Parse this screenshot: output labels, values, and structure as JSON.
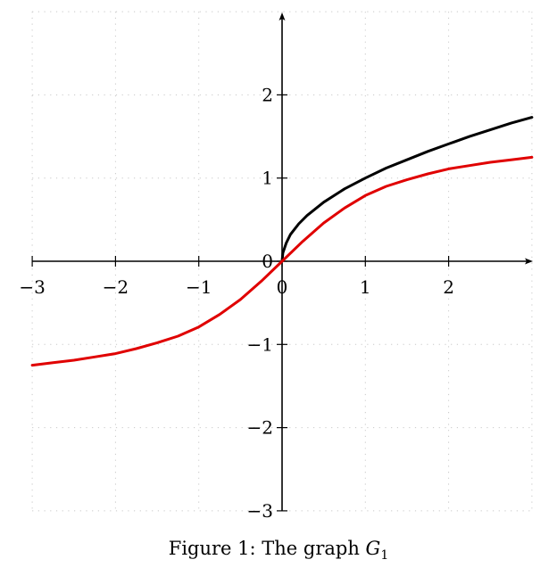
{
  "caption": {
    "prefix": "Figure 1:  The graph ",
    "symbol": "G",
    "subscript": "1"
  },
  "chart_data": {
    "type": "line",
    "title": "",
    "xlabel": "",
    "ylabel": "",
    "xlim": [
      -3,
      3
    ],
    "ylim": [
      -3,
      3
    ],
    "grid": true,
    "x_ticks": [
      -3,
      -2,
      -1,
      0,
      1,
      2
    ],
    "x_tick_labels": [
      "−3",
      "−2",
      "−1",
      "0",
      "1",
      "2"
    ],
    "y_ticks": [
      -3,
      -2,
      -1,
      0,
      1,
      2
    ],
    "y_tick_labels": [
      "−3",
      "−2",
      "−1",
      "0",
      "1",
      "2"
    ],
    "series": [
      {
        "color": "#000000",
        "x": [
          0,
          0.01,
          0.05,
          0.1,
          0.2,
          0.3,
          0.5,
          0.75,
          1,
          1.25,
          1.5,
          1.75,
          2,
          2.25,
          2.5,
          2.75,
          3
        ],
        "y": [
          0,
          0.1,
          0.22,
          0.32,
          0.45,
          0.55,
          0.71,
          0.87,
          1.0,
          1.12,
          1.22,
          1.32,
          1.41,
          1.5,
          1.58,
          1.66,
          1.73
        ]
      },
      {
        "color": "#e00000",
        "x": [
          -3,
          -2.75,
          -2.5,
          -2.25,
          -2,
          -1.75,
          -1.5,
          -1.25,
          -1,
          -0.75,
          -0.5,
          -0.25,
          0,
          0.25,
          0.5,
          0.75,
          1,
          1.25,
          1.5,
          1.75,
          2,
          2.25,
          2.5,
          2.75,
          3
        ],
        "y": [
          -1.25,
          -1.22,
          -1.19,
          -1.15,
          -1.11,
          -1.05,
          -0.98,
          -0.9,
          -0.79,
          -0.64,
          -0.46,
          -0.24,
          0,
          0.24,
          0.46,
          0.64,
          0.79,
          0.9,
          0.98,
          1.05,
          1.11,
          1.15,
          1.19,
          1.22,
          1.25
        ]
      }
    ]
  }
}
